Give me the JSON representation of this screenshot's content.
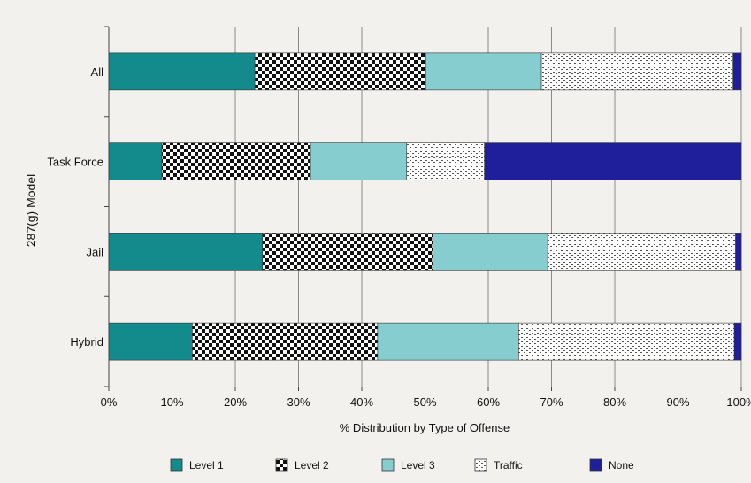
{
  "chart_data": {
    "type": "bar",
    "orientation": "horizontal",
    "stacked": true,
    "title": "",
    "xlabel": "% Distribution by Type of Offense",
    "ylabel": "287(g) Model",
    "xlim": [
      0,
      100
    ],
    "x_ticks": [
      "0%",
      "10%",
      "20%",
      "30%",
      "40%",
      "50%",
      "60%",
      "70%",
      "80%",
      "90%",
      "100%"
    ],
    "categories": [
      "All",
      "Task Force",
      "Jail",
      "Hybrid"
    ],
    "series": [
      {
        "name": "Level 1",
        "values": [
          23.1,
          8.4,
          24.3,
          13.2
        ],
        "color": "#138a8c",
        "pattern": "solid"
      },
      {
        "name": "Level 2",
        "values": [
          27.0,
          23.5,
          26.9,
          29.3
        ],
        "color": "#111111",
        "pattern": "checker"
      },
      {
        "name": "Level 3",
        "values": [
          18.3,
          15.2,
          18.2,
          22.3
        ],
        "color": "#86cdd0",
        "pattern": "solid"
      },
      {
        "name": "Traffic",
        "values": [
          30.3,
          12.3,
          29.7,
          34.1
        ],
        "color": "#bdbdbd",
        "pattern": "dots"
      },
      {
        "name": "None",
        "values": [
          1.3,
          40.6,
          0.9,
          1.1
        ],
        "color": "#1f1f9c",
        "pattern": "solid"
      }
    ],
    "grid": true,
    "legend_position": "bottom"
  }
}
